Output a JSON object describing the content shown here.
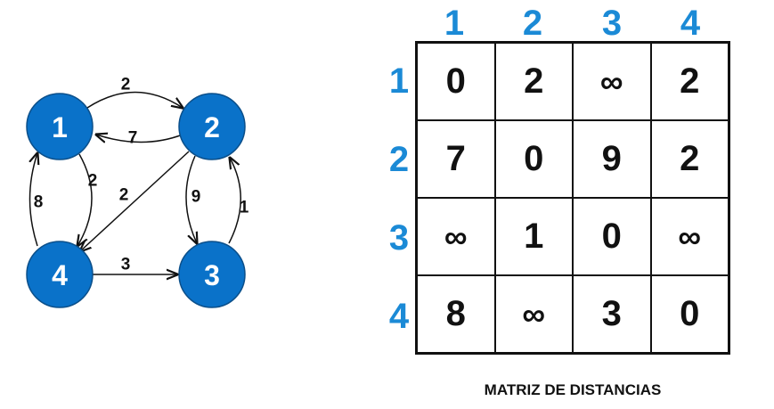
{
  "graph": {
    "nodes": [
      {
        "id": "1",
        "label": "1"
      },
      {
        "id": "2",
        "label": "2"
      },
      {
        "id": "3",
        "label": "3"
      },
      {
        "id": "4",
        "label": "4"
      }
    ],
    "edges": [
      {
        "from": "1",
        "to": "2",
        "weight": "2"
      },
      {
        "from": "2",
        "to": "1",
        "weight": "7"
      },
      {
        "from": "1",
        "to": "4",
        "weight": "2"
      },
      {
        "from": "4",
        "to": "1",
        "weight": "8"
      },
      {
        "from": "2",
        "to": "4",
        "weight": "2"
      },
      {
        "from": "2",
        "to": "3",
        "weight": "9"
      },
      {
        "from": "3",
        "to": "2",
        "weight": "1"
      },
      {
        "from": "4",
        "to": "3",
        "weight": "3"
      }
    ],
    "node_color": "#0a72c9"
  },
  "matrix": {
    "column_headers": [
      "1",
      "2",
      "3",
      "4"
    ],
    "row_headers": [
      "1",
      "2",
      "3",
      "4"
    ],
    "rows": [
      [
        "0",
        "2",
        "∞",
        "2"
      ],
      [
        "7",
        "0",
        "9",
        "2"
      ],
      [
        "∞",
        "1",
        "0",
        "∞"
      ],
      [
        "8",
        "∞",
        "3",
        "0"
      ]
    ],
    "caption": "MATRIZ DE DISTANCIAS",
    "header_color": "#1b8ad6"
  }
}
